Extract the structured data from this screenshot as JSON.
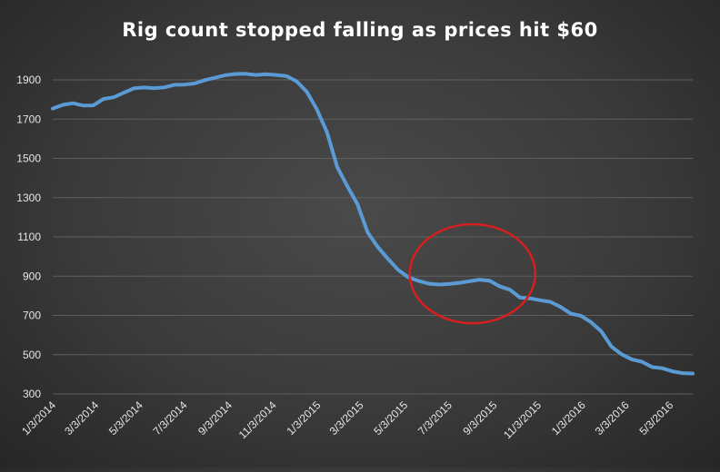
{
  "colors": {
    "series": "#5b9bd5",
    "annotation": "#d71f1f",
    "text": "#e6e6e6",
    "grid": "#5f5f5f"
  },
  "chart_data": {
    "type": "line",
    "title": "Rig count stopped falling as prices hit $60",
    "xlabel": "",
    "ylabel": "",
    "ylim": [
      300,
      1900
    ],
    "yticks": [
      300,
      500,
      700,
      900,
      1100,
      1300,
      1500,
      1700,
      1900
    ],
    "x_tick_labels": [
      "1/3/2014",
      "3/3/2014",
      "5/3/2014",
      "7/3/2014",
      "9/3/2014",
      "11/3/2014",
      "1/3/2015",
      "3/3/2015",
      "5/3/2015",
      "7/3/2015",
      "9/3/2015",
      "11/3/2015",
      "1/3/2016",
      "3/3/2016",
      "5/3/2016"
    ],
    "xlim": [
      "2014-01-03",
      "2016-06-03"
    ],
    "grid": true,
    "legend": "none",
    "annotation": {
      "type": "ellipse",
      "start": "2015-05-10",
      "end": "2015-10-30",
      "y_range": [
        660,
        1165
      ]
    },
    "series": [
      {
        "x": [
          "2014-01-03",
          "2014-01-17",
          "2014-01-31",
          "2014-02-14",
          "2014-02-28",
          "2014-03-14",
          "2014-03-28",
          "2014-04-11",
          "2014-04-25",
          "2014-05-09",
          "2014-05-23",
          "2014-06-06",
          "2014-06-20",
          "2014-07-04",
          "2014-07-18",
          "2014-08-01",
          "2014-08-15",
          "2014-08-29",
          "2014-09-12",
          "2014-09-26",
          "2014-10-10",
          "2014-10-24",
          "2014-11-07",
          "2014-11-21",
          "2014-12-05",
          "2014-12-19",
          "2015-01-02",
          "2015-01-16",
          "2015-01-30",
          "2015-02-13",
          "2015-02-27",
          "2015-03-13",
          "2015-03-27",
          "2015-04-10",
          "2015-04-24",
          "2015-05-08",
          "2015-05-22",
          "2015-06-05",
          "2015-06-19",
          "2015-07-03",
          "2015-07-17",
          "2015-07-31",
          "2015-08-14",
          "2015-08-28",
          "2015-09-11",
          "2015-09-25",
          "2015-10-09",
          "2015-10-23",
          "2015-11-06",
          "2015-11-20",
          "2015-12-04",
          "2015-12-18",
          "2016-01-01",
          "2016-01-15",
          "2016-01-29",
          "2016-02-12",
          "2016-02-26",
          "2016-03-11",
          "2016-03-25",
          "2016-04-08",
          "2016-04-22",
          "2016-05-06",
          "2016-05-20",
          "2016-06-03"
        ],
        "y": [
          1754,
          1773,
          1781,
          1769,
          1770,
          1803,
          1811,
          1835,
          1857,
          1861,
          1858,
          1862,
          1875,
          1876,
          1882,
          1899,
          1911,
          1924,
          1930,
          1931,
          1925,
          1929,
          1925,
          1920,
          1893,
          1840,
          1750,
          1633,
          1456,
          1358,
          1267,
          1123,
          1048,
          988,
          932,
          894,
          876,
          862,
          857,
          860,
          866,
          874,
          882,
          877,
          848,
          831,
          791,
          787,
          777,
          769,
          743,
          709,
          698,
          665,
          619,
          541,
          502,
          476,
          464,
          437,
          431,
          415,
          406,
          404
        ]
      }
    ]
  }
}
